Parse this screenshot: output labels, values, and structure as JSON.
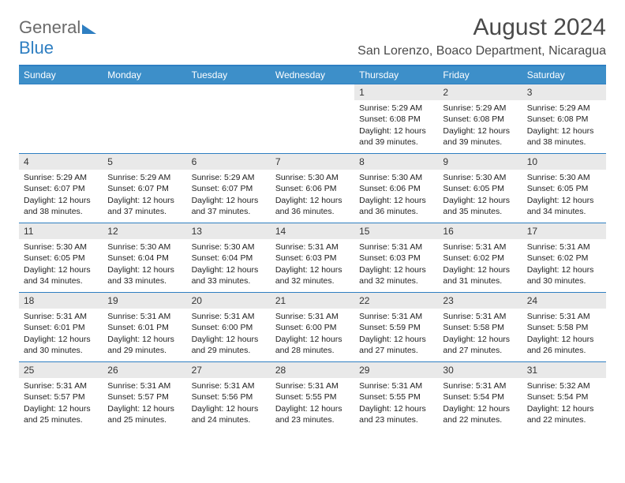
{
  "brand": {
    "part1": "General",
    "part2": "Blue"
  },
  "title": {
    "month": "August 2024",
    "location": "San Lorenzo, Boaco Department, Nicaragua"
  },
  "colors": {
    "header_bg": "#3d8fc9",
    "border": "#2f7fc2",
    "daynum_bg": "#e9e9e9"
  },
  "weekdays": [
    "Sunday",
    "Monday",
    "Tuesday",
    "Wednesday",
    "Thursday",
    "Friday",
    "Saturday"
  ],
  "cells": [
    {
      "n": "",
      "sr": "",
      "ss": "",
      "dl": ""
    },
    {
      "n": "",
      "sr": "",
      "ss": "",
      "dl": ""
    },
    {
      "n": "",
      "sr": "",
      "ss": "",
      "dl": ""
    },
    {
      "n": "",
      "sr": "",
      "ss": "",
      "dl": ""
    },
    {
      "n": "1",
      "sr": "5:29 AM",
      "ss": "6:08 PM",
      "dl": "12 hours and 39 minutes."
    },
    {
      "n": "2",
      "sr": "5:29 AM",
      "ss": "6:08 PM",
      "dl": "12 hours and 39 minutes."
    },
    {
      "n": "3",
      "sr": "5:29 AM",
      "ss": "6:08 PM",
      "dl": "12 hours and 38 minutes."
    },
    {
      "n": "4",
      "sr": "5:29 AM",
      "ss": "6:07 PM",
      "dl": "12 hours and 38 minutes."
    },
    {
      "n": "5",
      "sr": "5:29 AM",
      "ss": "6:07 PM",
      "dl": "12 hours and 37 minutes."
    },
    {
      "n": "6",
      "sr": "5:29 AM",
      "ss": "6:07 PM",
      "dl": "12 hours and 37 minutes."
    },
    {
      "n": "7",
      "sr": "5:30 AM",
      "ss": "6:06 PM",
      "dl": "12 hours and 36 minutes."
    },
    {
      "n": "8",
      "sr": "5:30 AM",
      "ss": "6:06 PM",
      "dl": "12 hours and 36 minutes."
    },
    {
      "n": "9",
      "sr": "5:30 AM",
      "ss": "6:05 PM",
      "dl": "12 hours and 35 minutes."
    },
    {
      "n": "10",
      "sr": "5:30 AM",
      "ss": "6:05 PM",
      "dl": "12 hours and 34 minutes."
    },
    {
      "n": "11",
      "sr": "5:30 AM",
      "ss": "6:05 PM",
      "dl": "12 hours and 34 minutes."
    },
    {
      "n": "12",
      "sr": "5:30 AM",
      "ss": "6:04 PM",
      "dl": "12 hours and 33 minutes."
    },
    {
      "n": "13",
      "sr": "5:30 AM",
      "ss": "6:04 PM",
      "dl": "12 hours and 33 minutes."
    },
    {
      "n": "14",
      "sr": "5:31 AM",
      "ss": "6:03 PM",
      "dl": "12 hours and 32 minutes."
    },
    {
      "n": "15",
      "sr": "5:31 AM",
      "ss": "6:03 PM",
      "dl": "12 hours and 32 minutes."
    },
    {
      "n": "16",
      "sr": "5:31 AM",
      "ss": "6:02 PM",
      "dl": "12 hours and 31 minutes."
    },
    {
      "n": "17",
      "sr": "5:31 AM",
      "ss": "6:02 PM",
      "dl": "12 hours and 30 minutes."
    },
    {
      "n": "18",
      "sr": "5:31 AM",
      "ss": "6:01 PM",
      "dl": "12 hours and 30 minutes."
    },
    {
      "n": "19",
      "sr": "5:31 AM",
      "ss": "6:01 PM",
      "dl": "12 hours and 29 minutes."
    },
    {
      "n": "20",
      "sr": "5:31 AM",
      "ss": "6:00 PM",
      "dl": "12 hours and 29 minutes."
    },
    {
      "n": "21",
      "sr": "5:31 AM",
      "ss": "6:00 PM",
      "dl": "12 hours and 28 minutes."
    },
    {
      "n": "22",
      "sr": "5:31 AM",
      "ss": "5:59 PM",
      "dl": "12 hours and 27 minutes."
    },
    {
      "n": "23",
      "sr": "5:31 AM",
      "ss": "5:58 PM",
      "dl": "12 hours and 27 minutes."
    },
    {
      "n": "24",
      "sr": "5:31 AM",
      "ss": "5:58 PM",
      "dl": "12 hours and 26 minutes."
    },
    {
      "n": "25",
      "sr": "5:31 AM",
      "ss": "5:57 PM",
      "dl": "12 hours and 25 minutes."
    },
    {
      "n": "26",
      "sr": "5:31 AM",
      "ss": "5:57 PM",
      "dl": "12 hours and 25 minutes."
    },
    {
      "n": "27",
      "sr": "5:31 AM",
      "ss": "5:56 PM",
      "dl": "12 hours and 24 minutes."
    },
    {
      "n": "28",
      "sr": "5:31 AM",
      "ss": "5:55 PM",
      "dl": "12 hours and 23 minutes."
    },
    {
      "n": "29",
      "sr": "5:31 AM",
      "ss": "5:55 PM",
      "dl": "12 hours and 23 minutes."
    },
    {
      "n": "30",
      "sr": "5:31 AM",
      "ss": "5:54 PM",
      "dl": "12 hours and 22 minutes."
    },
    {
      "n": "31",
      "sr": "5:32 AM",
      "ss": "5:54 PM",
      "dl": "12 hours and 22 minutes."
    }
  ],
  "labels": {
    "sunrise": "Sunrise: ",
    "sunset": "Sunset: ",
    "daylight": "Daylight: "
  }
}
